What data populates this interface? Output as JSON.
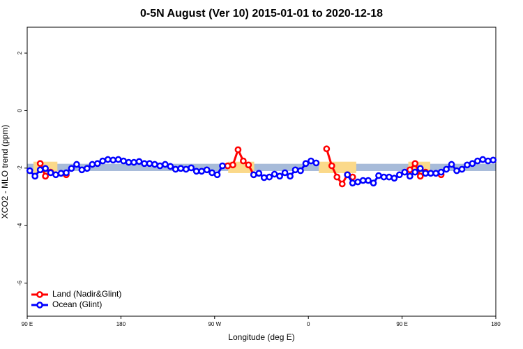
{
  "chart_data": {
    "type": "line",
    "title": "0-5N August (Ver 10)   2015-01-01 to 2020-12-18",
    "x_label": "Longitude (deg E)",
    "y_label": "XCO2 - MLO trend (ppm)",
    "xlim": [
      90,
      540
    ],
    "ylim": [
      -7.15,
      2.9
    ],
    "xticks": [
      {
        "value": 90,
        "label": "90 E"
      },
      {
        "value": 180,
        "label": "180"
      },
      {
        "value": 270,
        "label": "90 W"
      },
      {
        "value": 360,
        "label": "0"
      },
      {
        "value": 450,
        "label": "90 E"
      },
      {
        "value": 540,
        "label": "180"
      }
    ],
    "yticks": [
      2,
      0,
      -2,
      -4,
      -6
    ],
    "reference_band": [
      -2.1,
      -1.85
    ],
    "band_color": "#a7bbd9",
    "land_shading": [
      [
        96,
        119
      ],
      [
        283,
        308
      ],
      [
        370,
        406
      ],
      [
        456,
        477
      ]
    ],
    "shading_color": "#fbd98a",
    "legend": "bottom-left",
    "series": [
      {
        "name": "Land (Nadir&Glint)",
        "color": "#ff0000",
        "x": [
          102.5,
          107.5,
          112.5,
          null,
          127.5,
          null,
          282.5,
          287.5,
          292.5,
          297.5,
          302.5,
          307.5,
          null,
          377.5,
          382.5,
          387.5,
          392.5,
          397.5,
          402.5,
          null,
          457.5,
          462.5,
          467.5,
          472.5,
          null,
          487.5
        ],
        "values": [
          -1.84,
          -2.28,
          -2.14,
          null,
          -2.23,
          null,
          -1.92,
          -1.89,
          -1.36,
          -1.75,
          -1.89,
          -2.23,
          null,
          -1.33,
          -1.92,
          -2.31,
          -2.55,
          -2.23,
          -2.31,
          null,
          -2.06,
          -1.84,
          -2.28,
          -2.14,
          null,
          -2.23
        ]
      },
      {
        "name": "Ocean (Glint)",
        "color": "#0000ff",
        "x": [
          92.5,
          97.5,
          102.5,
          107.5,
          112.5,
          117.5,
          122.5,
          127.5,
          132.5,
          137.5,
          142.5,
          147.5,
          152.5,
          157.5,
          162.5,
          167.5,
          172.5,
          177.5,
          182.5,
          187.5,
          192.5,
          197.5,
          202.5,
          207.5,
          212.5,
          217.5,
          222.5,
          227.5,
          232.5,
          237.5,
          242.5,
          247.5,
          252.5,
          257.5,
          262.5,
          267.5,
          272.5,
          277.5,
          null,
          307.5,
          312.5,
          317.5,
          322.5,
          327.5,
          332.5,
          337.5,
          342.5,
          347.5,
          352.5,
          357.5,
          362.5,
          367.5,
          null,
          397.5,
          402.5,
          407.5,
          412.5,
          417.5,
          422.5,
          427.5,
          432.5,
          437.5,
          442.5,
          447.5,
          452.5,
          457.5,
          462.5,
          467.5,
          472.5,
          477.5,
          482.5,
          487.5,
          492.5,
          497.5,
          502.5,
          507.5,
          512.5,
          517.5,
          522.5,
          527.5,
          532.5,
          537.5
        ],
        "values": [
          -2.09,
          -2.28,
          -2.06,
          -2.01,
          -2.16,
          -2.23,
          -2.18,
          -2.16,
          -2.01,
          -1.87,
          -2.06,
          -2.01,
          -1.87,
          -1.84,
          -1.75,
          -1.7,
          -1.72,
          -1.7,
          -1.75,
          -1.8,
          -1.8,
          -1.77,
          -1.84,
          -1.84,
          -1.87,
          -1.92,
          -1.87,
          -1.94,
          -2.04,
          -2.01,
          -2.04,
          -1.99,
          -2.11,
          -2.11,
          -2.06,
          -2.16,
          -2.23,
          -1.92,
          null,
          -2.23,
          -2.18,
          -2.33,
          -2.31,
          -2.21,
          -2.28,
          -2.16,
          -2.28,
          -2.06,
          -2.09,
          -1.84,
          -1.75,
          -1.82,
          null,
          -2.23,
          -2.52,
          -2.48,
          -2.43,
          -2.43,
          -2.52,
          -2.26,
          -2.31,
          -2.31,
          -2.35,
          -2.23,
          -2.14,
          -2.28,
          -2.14,
          -2.01,
          -2.18,
          -2.18,
          -2.18,
          -2.14,
          -2.04,
          -1.87,
          -2.09,
          -2.04,
          -1.89,
          -1.84,
          -1.75,
          -1.7,
          -1.75,
          -1.72
        ]
      }
    ]
  }
}
